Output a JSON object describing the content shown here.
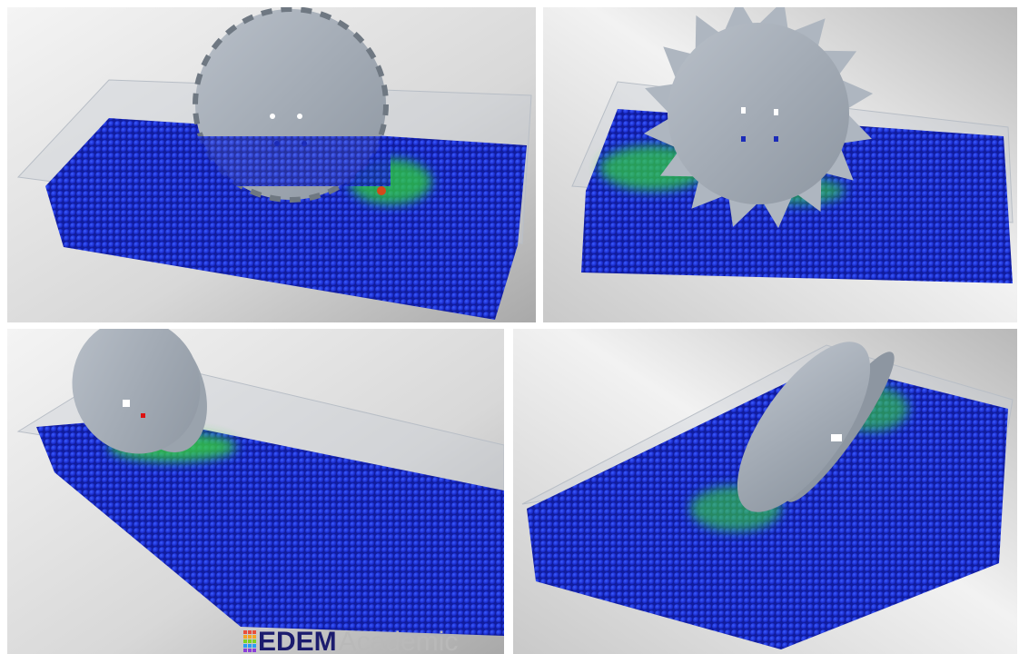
{
  "watermark": {
    "brand": "EDEM",
    "suffix": "Academic"
  }
}
